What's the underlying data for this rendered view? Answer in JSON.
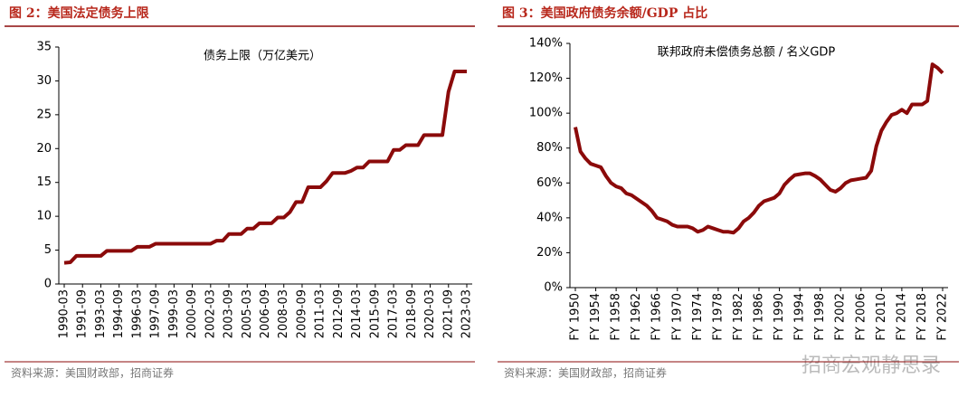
{
  "chart_data": [
    {
      "type": "line",
      "title": "图 2：美国法定债务上限",
      "subtitle": "债务上限（万亿美元）",
      "source": "资料来源：美国财政部，招商证券",
      "categories": [
        "1990-03",
        null,
        null,
        "1991-09",
        null,
        null,
        "1993-03",
        null,
        null,
        "1994-09",
        null,
        null,
        "1996-03",
        null,
        null,
        "1997-09",
        null,
        null,
        "1999-03",
        null,
        null,
        "2000-09",
        null,
        null,
        "2002-03",
        null,
        null,
        "2003-09",
        null,
        null,
        "2005-03",
        null,
        null,
        "2006-09",
        null,
        null,
        "2008-03",
        null,
        null,
        "2009-09",
        null,
        null,
        "2011-03",
        null,
        null,
        "2012-09",
        null,
        null,
        "2014-03",
        null,
        null,
        "2015-09",
        null,
        null,
        "2017-03",
        null,
        null,
        "2018-09",
        null,
        null,
        "2020-03",
        null,
        null,
        "2021-09",
        null,
        null,
        "2023-03"
      ],
      "values": [
        3.12,
        3.2,
        4.15,
        4.15,
        4.15,
        4.15,
        4.15,
        4.9,
        4.9,
        4.9,
        4.9,
        4.9,
        5.5,
        5.5,
        5.5,
        5.95,
        5.95,
        5.95,
        5.95,
        5.95,
        5.95,
        5.95,
        5.95,
        5.95,
        5.95,
        6.4,
        6.4,
        7.38,
        7.38,
        7.38,
        8.18,
        8.18,
        8.97,
        8.97,
        8.97,
        9.82,
        9.82,
        10.62,
        12.1,
        12.1,
        14.29,
        14.29,
        14.29,
        15.19,
        16.39,
        16.39,
        16.39,
        16.7,
        17.2,
        17.2,
        18.1,
        18.1,
        18.1,
        18.1,
        19.8,
        19.8,
        20.5,
        20.5,
        20.5,
        22.0,
        22.0,
        22.0,
        22.0,
        28.4,
        31.4,
        31.4,
        31.4
      ],
      "color": "#8b0a0a",
      "ylim": [
        0,
        35
      ],
      "yticks": [
        0,
        5,
        10,
        15,
        20,
        25,
        30,
        35
      ],
      "grid": false
    },
    {
      "type": "line",
      "title": "图 3：美国政府债务余额/GDP 占比",
      "subtitle": "联邦政府未偿债务总额 / 名义GDP",
      "source": "资料来源：美国财政部，招商证券",
      "categories": [
        "FY 1950",
        null,
        null,
        null,
        "FY 1954",
        null,
        null,
        null,
        "FY 1958",
        null,
        null,
        null,
        "FY 1962",
        null,
        null,
        null,
        "FY 1966",
        null,
        null,
        null,
        "FY 1970",
        null,
        null,
        null,
        "FY 1974",
        null,
        null,
        null,
        "FY 1978",
        null,
        null,
        null,
        "FY 1982",
        null,
        null,
        null,
        "FY 1986",
        null,
        null,
        null,
        "FY 1990",
        null,
        null,
        null,
        "FY 1994",
        null,
        null,
        null,
        "FY 1998",
        null,
        null,
        null,
        "FY 2002",
        null,
        null,
        null,
        "FY 2006",
        null,
        null,
        null,
        "FY 2010",
        null,
        null,
        null,
        "FY 2014",
        null,
        null,
        null,
        "FY 2018",
        null,
        null,
        null,
        "FY 2022"
      ],
      "values": [
        92,
        78,
        74,
        71,
        70,
        69,
        64,
        60,
        58,
        57,
        54,
        53,
        51,
        49,
        47,
        44,
        40,
        39,
        38,
        36,
        35,
        35,
        35,
        34,
        32,
        33,
        35,
        34,
        33,
        32,
        32,
        31.5,
        34,
        38,
        40,
        43,
        47,
        49.5,
        50.5,
        51.5,
        54,
        59,
        62,
        64.5,
        65,
        65.5,
        65.5,
        64,
        62,
        59,
        56,
        55,
        57,
        60,
        61.5,
        62,
        62.5,
        63,
        67,
        81,
        90,
        95,
        99,
        100,
        102,
        100,
        105,
        105,
        105,
        107,
        128,
        126,
        123
      ],
      "color": "#8b0a0a",
      "ylim": [
        0,
        140
      ],
      "yticks": [
        {
          "value": 0,
          "label": "0%"
        },
        {
          "value": 20,
          "label": "20%"
        },
        {
          "value": 40,
          "label": "40%"
        },
        {
          "value": 60,
          "label": "60%"
        },
        {
          "value": 80,
          "label": "80%"
        },
        {
          "value": 100,
          "label": "100%"
        },
        {
          "value": 120,
          "label": "120%"
        },
        {
          "value": 140,
          "label": "140%"
        }
      ],
      "grid": false
    }
  ],
  "watermark": "招商宏观静思录"
}
